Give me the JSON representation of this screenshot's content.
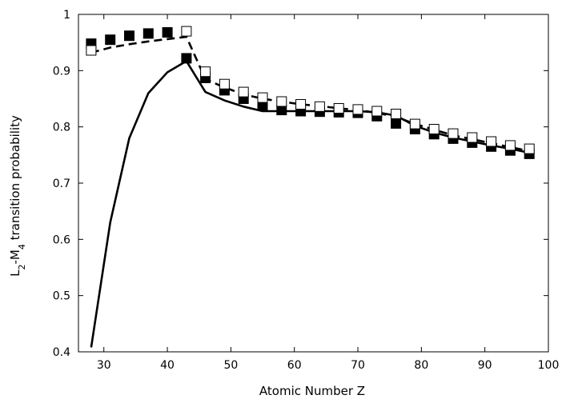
{
  "chart_data": {
    "type": "line",
    "title": "",
    "xlabel": "Atomic Number Z",
    "ylabel": {
      "prefix": "L",
      "sub1": "2",
      "mid": "-M",
      "sub2": "4",
      "suffix": " transition probability"
    },
    "xlim": [
      26,
      100
    ],
    "ylim": [
      0.4,
      1.0
    ],
    "xticks": [
      30,
      40,
      50,
      60,
      70,
      80,
      90,
      100
    ],
    "yticks": [
      0.4,
      0.5,
      0.6,
      0.7,
      0.8,
      0.9,
      1.0
    ],
    "ytick_labels": [
      "0.4",
      "0.5",
      "0.6",
      "0.7",
      "0.8",
      "0.9",
      "1"
    ],
    "grid": false,
    "legend": "none",
    "series": [
      {
        "style": "solid-line",
        "color": "#000000",
        "x": [
          28,
          31,
          34,
          37,
          40,
          43,
          46,
          49,
          52,
          55,
          58,
          61,
          64,
          67,
          70,
          73,
          76,
          79,
          82,
          85,
          88,
          91,
          94,
          97
        ],
        "y": [
          0.408,
          0.63,
          0.78,
          0.86,
          0.897,
          0.917,
          0.862,
          0.847,
          0.836,
          0.828,
          0.828,
          0.828,
          0.828,
          0.828,
          0.828,
          0.826,
          0.82,
          0.802,
          0.79,
          0.781,
          0.774,
          0.767,
          0.761,
          0.754
        ]
      },
      {
        "style": "dashed-line",
        "color": "#000000",
        "x": [
          28,
          31,
          34,
          37,
          40,
          43,
          46,
          49,
          52,
          55,
          58,
          61,
          64,
          67,
          70,
          73,
          76,
          79,
          82,
          85,
          88,
          91,
          94,
          97
        ],
        "y": [
          0.932,
          0.941,
          0.947,
          0.952,
          0.956,
          0.96,
          0.885,
          0.87,
          0.858,
          0.85,
          0.845,
          0.84,
          0.837,
          0.833,
          0.83,
          0.825,
          0.818,
          0.805,
          0.795,
          0.785,
          0.778,
          0.771,
          0.764,
          0.757
        ]
      },
      {
        "style": "filled-square",
        "color": "#000000",
        "x": [
          28,
          31,
          34,
          37,
          40,
          43,
          46,
          49,
          52,
          55,
          58,
          61,
          64,
          67,
          70,
          73,
          76,
          79,
          82,
          85,
          88,
          91,
          94,
          97
        ],
        "y": [
          0.948,
          0.955,
          0.962,
          0.966,
          0.968,
          0.922,
          0.887,
          0.865,
          0.85,
          0.838,
          0.83,
          0.828,
          0.827,
          0.826,
          0.825,
          0.819,
          0.806,
          0.796,
          0.787,
          0.779,
          0.772,
          0.765,
          0.758,
          0.752
        ]
      },
      {
        "style": "open-square",
        "color": "#000000",
        "x": [
          28,
          43,
          46,
          49,
          52,
          55,
          58,
          61,
          64,
          67,
          70,
          73,
          76,
          79,
          82,
          85,
          88,
          91,
          94,
          97
        ],
        "y": [
          0.936,
          0.97,
          0.898,
          0.876,
          0.862,
          0.852,
          0.845,
          0.84,
          0.836,
          0.833,
          0.831,
          0.828,
          0.823,
          0.805,
          0.796,
          0.788,
          0.781,
          0.774,
          0.767,
          0.761
        ]
      }
    ]
  }
}
